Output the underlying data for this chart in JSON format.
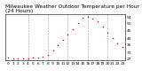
{
  "title": "Milwaukee Weather Outdoor Temperature per Hour (24 Hours)",
  "temps": [
    27.5,
    27.2,
    27.0,
    27.3,
    27.1,
    27.4,
    27.6,
    28.0,
    29.5,
    32.0,
    35.5,
    39.0,
    42.5,
    46.0,
    50.0,
    53.5,
    54.0,
    53.0,
    51.0,
    48.0,
    44.0,
    40.5,
    37.0,
    34.5
  ],
  "hours": [
    0,
    1,
    2,
    3,
    4,
    5,
    6,
    7,
    8,
    9,
    10,
    11,
    12,
    13,
    14,
    15,
    16,
    17,
    18,
    19,
    20,
    21,
    22,
    23
  ],
  "ylim": [
    26,
    56
  ],
  "yticks": [
    27,
    31,
    36,
    40,
    45,
    50,
    54
  ],
  "dot_color": "#ff0000",
  "bg_color": "#ffffff",
  "grid_color": "#999999",
  "title_fontsize": 4.2,
  "tick_fontsize": 3.2,
  "vgrid_hours": [
    4,
    8,
    12,
    16,
    20
  ],
  "xlim": [
    -0.5,
    23.5
  ]
}
